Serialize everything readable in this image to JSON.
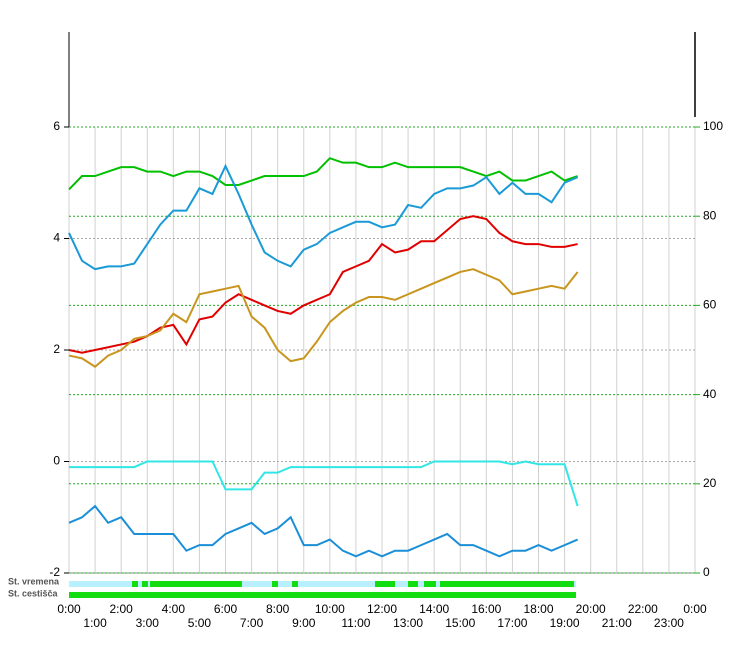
{
  "chart_data": {
    "type": "line",
    "status_rows": [
      "St. vremena",
      "St. cestišča"
    ],
    "x": [
      0,
      0.5,
      1,
      1.5,
      2,
      2.5,
      3,
      3.5,
      4,
      4.5,
      5,
      5.5,
      6,
      6.5,
      7,
      7.5,
      8,
      8.5,
      9,
      9.5,
      10,
      10.5,
      11,
      11.5,
      12,
      12.5,
      13,
      13.5,
      14,
      14.5,
      15,
      15.5,
      16,
      16.5,
      17,
      17.5,
      18,
      18.5,
      19,
      19.5
    ],
    "xlim": [
      0,
      24
    ],
    "xticks": [
      {
        "value": 0,
        "label": "0:00"
      },
      {
        "value": 1,
        "label": "1:00"
      },
      {
        "value": 2,
        "label": "2:00"
      },
      {
        "value": 3,
        "label": "3:00"
      },
      {
        "value": 4,
        "label": "4:00"
      },
      {
        "value": 5,
        "label": "5:00"
      },
      {
        "value": 6,
        "label": "6:00"
      },
      {
        "value": 7,
        "label": "7:00"
      },
      {
        "value": 8,
        "label": "8:00"
      },
      {
        "value": 9,
        "label": "9:00"
      },
      {
        "value": 10,
        "label": "10:00"
      },
      {
        "value": 11,
        "label": "11:00"
      },
      {
        "value": 12,
        "label": "12:00"
      },
      {
        "value": 13,
        "label": "13:00"
      },
      {
        "value": 14,
        "label": "14:00"
      },
      {
        "value": 15,
        "label": "15:00"
      },
      {
        "value": 16,
        "label": "16:00"
      },
      {
        "value": 17,
        "label": "17:00"
      },
      {
        "value": 18,
        "label": "18:00"
      },
      {
        "value": 19,
        "label": "19:00"
      },
      {
        "value": 20,
        "label": "20:00"
      },
      {
        "value": 21,
        "label": "21:00"
      },
      {
        "value": 22,
        "label": "22:00"
      },
      {
        "value": 23,
        "label": "23:00"
      },
      {
        "value": 24,
        "label": "0:00"
      }
    ],
    "ylim": [
      -2,
      6
    ],
    "yticks": [
      -2,
      0,
      2,
      4,
      6
    ],
    "y2lim": [
      0,
      100
    ],
    "y2ticks": [
      0,
      20,
      40,
      60,
      80,
      100
    ],
    "y2color": "#22aa22",
    "grid": true,
    "series": [
      {
        "color": "#00c000",
        "axis": "y2",
        "values": [
          86,
          89,
          89,
          90,
          91,
          91,
          90,
          90,
          89,
          90,
          90,
          89,
          87,
          87,
          88,
          89,
          89,
          89,
          89,
          90,
          93,
          92,
          92,
          91,
          91,
          92,
          91,
          91,
          91,
          91,
          91,
          90,
          89,
          90,
          88,
          88,
          89,
          90,
          88,
          89
        ]
      },
      {
        "color": "#1a9ad6",
        "values": [
          4.1,
          3.6,
          3.45,
          3.5,
          3.5,
          3.55,
          3.9,
          4.25,
          4.5,
          4.5,
          4.9,
          4.8,
          5.3,
          4.8,
          4.25,
          3.75,
          3.6,
          3.5,
          3.8,
          3.9,
          4.1,
          4.2,
          4.3,
          4.3,
          4.2,
          4.25,
          4.6,
          4.55,
          4.8,
          4.9,
          4.9,
          4.95,
          5.1,
          4.8,
          5.0,
          4.8,
          4.8,
          4.65,
          5.0,
          5.1
        ]
      },
      {
        "color": "#e00000",
        "values": [
          2.0,
          1.95,
          2.0,
          2.05,
          2.1,
          2.15,
          2.25,
          2.4,
          2.45,
          2.1,
          2.55,
          2.6,
          2.85,
          3.0,
          2.9,
          2.8,
          2.7,
          2.65,
          2.8,
          2.9,
          3.0,
          3.4,
          3.5,
          3.6,
          3.9,
          3.75,
          3.8,
          3.95,
          3.95,
          4.15,
          4.35,
          4.4,
          4.35,
          4.1,
          3.95,
          3.9,
          3.9,
          3.85,
          3.85,
          3.9
        ]
      },
      {
        "color": "#c8961e",
        "values": [
          1.9,
          1.85,
          1.7,
          1.9,
          2.0,
          2.2,
          2.25,
          2.35,
          2.65,
          2.5,
          3.0,
          3.05,
          3.1,
          3.15,
          2.6,
          2.4,
          2.0,
          1.8,
          1.85,
          2.15,
          2.5,
          2.7,
          2.85,
          2.95,
          2.95,
          2.9,
          3.0,
          3.1,
          3.2,
          3.3,
          3.4,
          3.45,
          3.35,
          3.25,
          3.0,
          3.05,
          3.1,
          3.15,
          3.1,
          3.4
        ]
      },
      {
        "color": "#33e6e6",
        "values": [
          -0.1,
          -0.1,
          -0.1,
          -0.1,
          -0.1,
          -0.1,
          0,
          0,
          0,
          0,
          0,
          0,
          -0.5,
          -0.5,
          -0.5,
          -0.2,
          -0.2,
          -0.1,
          -0.1,
          -0.1,
          -0.1,
          -0.1,
          -0.1,
          -0.1,
          -0.1,
          -0.1,
          -0.1,
          -0.1,
          0,
          0,
          0,
          0,
          0,
          0,
          -0.05,
          0,
          -0.05,
          -0.05,
          -0.05,
          -0.8
        ]
      },
      {
        "color": "#1a8fd8",
        "values": [
          -1.1,
          -1.0,
          -0.8,
          -1.1,
          -1.0,
          -1.3,
          -1.3,
          -1.3,
          -1.3,
          -1.6,
          -1.5,
          -1.5,
          -1.3,
          -1.2,
          -1.1,
          -1.3,
          -1.2,
          -1.0,
          -1.5,
          -1.5,
          -1.4,
          -1.6,
          -1.7,
          -1.6,
          -1.7,
          -1.6,
          -1.6,
          -1.5,
          -1.4,
          -1.3,
          -1.5,
          -1.5,
          -1.6,
          -1.7,
          -1.6,
          -1.6,
          -1.5,
          -1.6,
          -1.5,
          -1.4
        ]
      }
    ]
  }
}
